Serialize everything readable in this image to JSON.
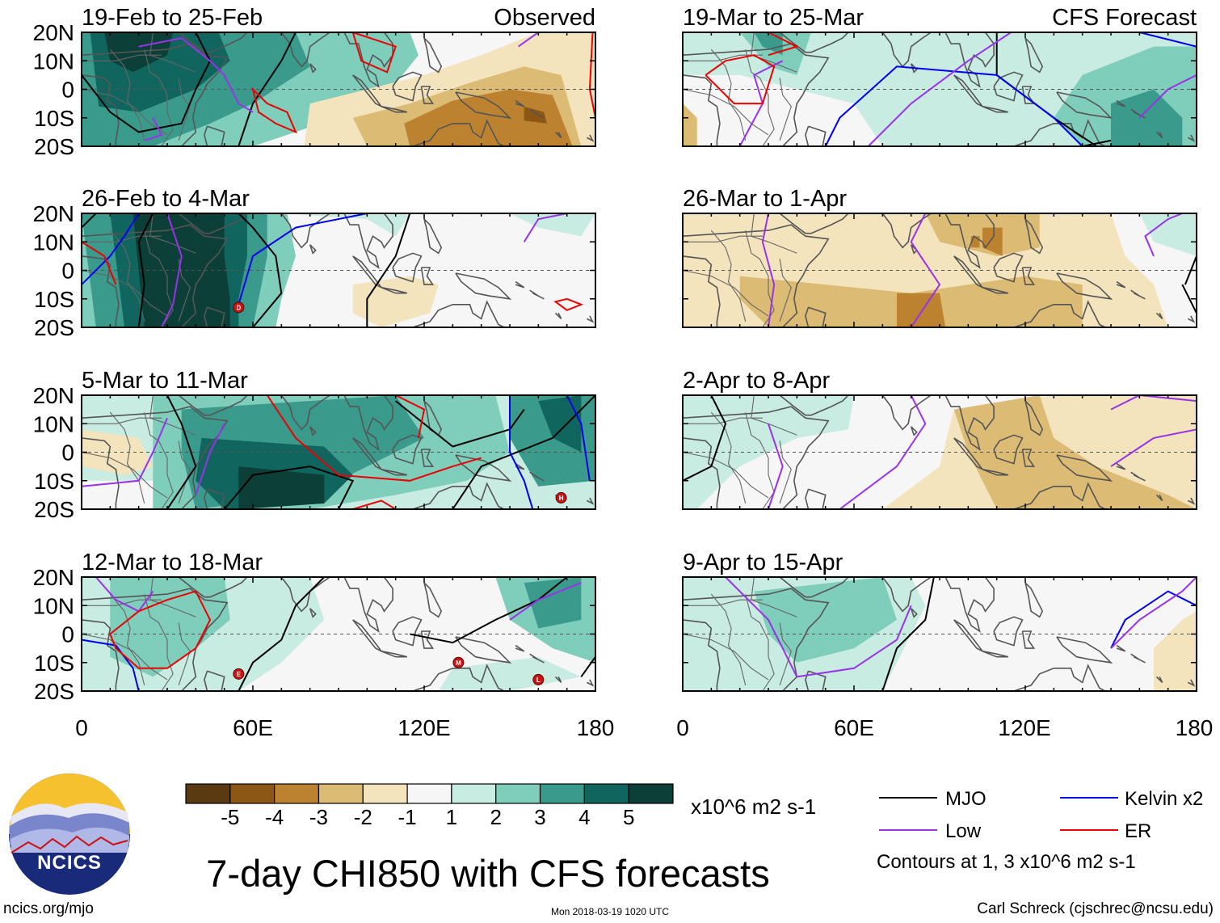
{
  "title": "7-day CHI850 with CFS forecasts",
  "units": "x10^6 m2 s-1",
  "panel_headers": {
    "left": "Observed",
    "right": "CFS Forecast"
  },
  "panels_left": [
    {
      "title": "19-Feb to 25-Feb"
    },
    {
      "title": "26-Feb to 4-Mar"
    },
    {
      "title": "5-Mar to 11-Mar"
    },
    {
      "title": "12-Mar to 18-Mar"
    }
  ],
  "panels_right": [
    {
      "title": "19-Mar to 25-Mar"
    },
    {
      "title": "26-Mar to 1-Apr"
    },
    {
      "title": "2-Apr to 8-Apr"
    },
    {
      "title": "9-Apr to 15-Apr"
    }
  ],
  "lat_labels": [
    "20N",
    "10N",
    "0",
    "10S",
    "20S"
  ],
  "lon_labels": [
    "0",
    "60E",
    "120E",
    "180"
  ],
  "colorbar": {
    "labels": [
      "-5",
      "-4",
      "-3",
      "-2",
      "-1",
      "1",
      "2",
      "3",
      "4",
      "5"
    ],
    "colors": [
      "#5a3a10",
      "#8c5714",
      "#bd8230",
      "#dcbb74",
      "#f4e4bd",
      "#f6f6f6",
      "#c8ebe2",
      "#7fcdbb",
      "#3a9a8c",
      "#10665e",
      "#0b3f37"
    ]
  },
  "legend": [
    {
      "label": "MJO",
      "color": "#000000"
    },
    {
      "label": "Kelvin x2",
      "color": "#0000ee"
    },
    {
      "label": "Low",
      "color": "#9932e8"
    },
    {
      "label": "ER",
      "color": "#ee0000"
    }
  ],
  "contour_note": "Contours at 1, 3 x10^6 m2 s-1",
  "storms": [
    {
      "panel": "left-1",
      "letter": "D"
    },
    {
      "panel": "left-2",
      "letter": "H"
    },
    {
      "panel": "left-3",
      "letter": "E"
    },
    {
      "panel": "left-3",
      "letter": "M"
    },
    {
      "panel": "left-3",
      "letter": "L"
    }
  ],
  "logo": "NCICS",
  "footer": {
    "left": "ncics.org/mjo",
    "center": "Mon 2018-03-19 1020 UTC",
    "right": "Carl Schreck (cjschrec@ncsu.edu)"
  }
}
